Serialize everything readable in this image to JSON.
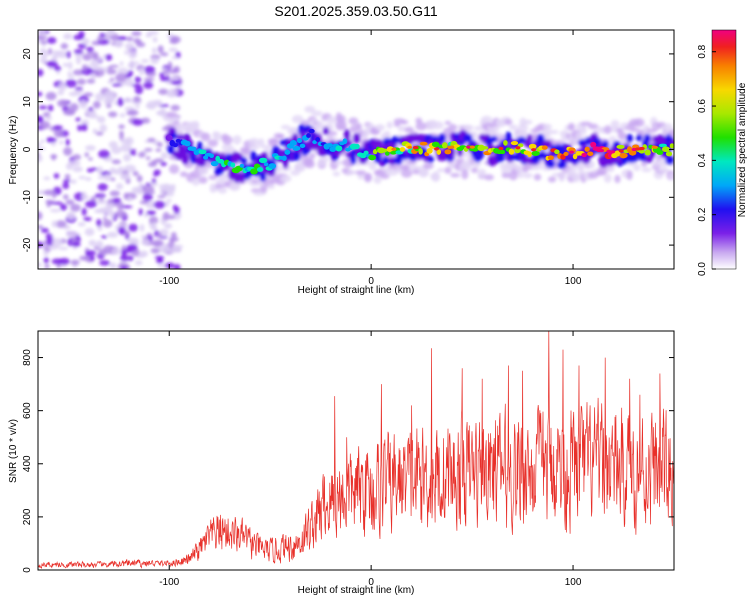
{
  "chart_data": [
    {
      "type": "heatmap",
      "title": "S201.2025.359.03.50.G11",
      "xlabel": "Height of straight line (km)",
      "ylabel": "Frequency (Hz)",
      "xlim": [
        -165,
        150
      ],
      "ylim": [
        -25,
        25
      ],
      "xticks": [
        -100,
        0,
        100
      ],
      "yticks": [
        -20,
        -10,
        0,
        10,
        20
      ],
      "colorbar": {
        "label": "Normalized spectral amplitude",
        "range": [
          0.0,
          0.88
        ],
        "ticks": [
          0.0,
          0.2,
          0.4,
          0.6,
          0.8
        ]
      },
      "ridge": {
        "x": [
          -100,
          -90,
          -80,
          -70,
          -60,
          -50,
          -40,
          -30,
          -20,
          -10,
          0,
          10,
          20,
          30,
          40,
          50,
          60,
          70,
          80,
          90,
          100,
          110,
          120,
          130,
          140,
          150
        ],
        "freq": [
          2,
          0,
          -2,
          -3.5,
          -4,
          -3,
          0,
          3,
          1,
          0.5,
          -1,
          0,
          0.5,
          0,
          0.5,
          0.5,
          0,
          0.5,
          0,
          -1,
          -0.5,
          0,
          -0.5,
          0,
          0.5,
          0
        ],
        "amplitude": [
          0.15,
          0.25,
          0.3,
          0.35,
          0.4,
          0.35,
          0.3,
          0.25,
          0.3,
          0.3,
          0.45,
          0.5,
          0.55,
          0.6,
          0.55,
          0.6,
          0.55,
          0.6,
          0.55,
          0.7,
          0.65,
          0.8,
          0.7,
          0.6,
          0.55,
          0.5
        ]
      },
      "noise_region_x": [
        -165,
        -95
      ]
    },
    {
      "type": "line",
      "xlabel": "Height of straight line (km)",
      "ylabel": "SNR (10 * v/v)",
      "xlim": [
        -165,
        150
      ],
      "ylim": [
        0,
        900
      ],
      "xticks": [
        -100,
        0,
        100
      ],
      "yticks": [
        0,
        200,
        400,
        600,
        800
      ],
      "line_color": "#e8302a",
      "envelope": {
        "x": [
          -165,
          -130,
          -120,
          -100,
          -90,
          -85,
          -80,
          -75,
          -70,
          -65,
          -60,
          -55,
          -50,
          -45,
          -40,
          -35,
          -30,
          -25,
          -20,
          -15,
          -10,
          -5,
          0,
          10,
          20,
          30,
          40,
          50,
          60,
          70,
          80,
          90,
          100,
          110,
          120,
          130,
          140,
          150
        ],
        "center": [
          20,
          20,
          25,
          25,
          40,
          80,
          120,
          150,
          140,
          130,
          100,
          80,
          70,
          80,
          90,
          110,
          160,
          220,
          260,
          280,
          290,
          300,
          310,
          330,
          340,
          350,
          360,
          370,
          380,
          380,
          380,
          390,
          390,
          390,
          390,
          380,
          380,
          380
        ],
        "spread": [
          15,
          15,
          20,
          15,
          30,
          60,
          90,
          110,
          100,
          90,
          80,
          70,
          60,
          70,
          80,
          100,
          130,
          180,
          200,
          210,
          220,
          230,
          240,
          250,
          260,
          270,
          280,
          280,
          290,
          290,
          290,
          300,
          300,
          300,
          300,
          290,
          290,
          290
        ]
      },
      "peaks": [
        {
          "x": -18,
          "y": 655
        },
        {
          "x": -12,
          "y": 500
        },
        {
          "x": 5,
          "y": 700
        },
        {
          "x": 20,
          "y": 620
        },
        {
          "x": 30,
          "y": 835
        },
        {
          "x": 45,
          "y": 760
        },
        {
          "x": 55,
          "y": 720
        },
        {
          "x": 68,
          "y": 770
        },
        {
          "x": 75,
          "y": 750
        },
        {
          "x": 88,
          "y": 905
        },
        {
          "x": 95,
          "y": 830
        },
        {
          "x": 103,
          "y": 770
        },
        {
          "x": 116,
          "y": 800
        },
        {
          "x": 128,
          "y": 720
        },
        {
          "x": 133,
          "y": 660
        },
        {
          "x": 143,
          "y": 740
        }
      ]
    }
  ]
}
